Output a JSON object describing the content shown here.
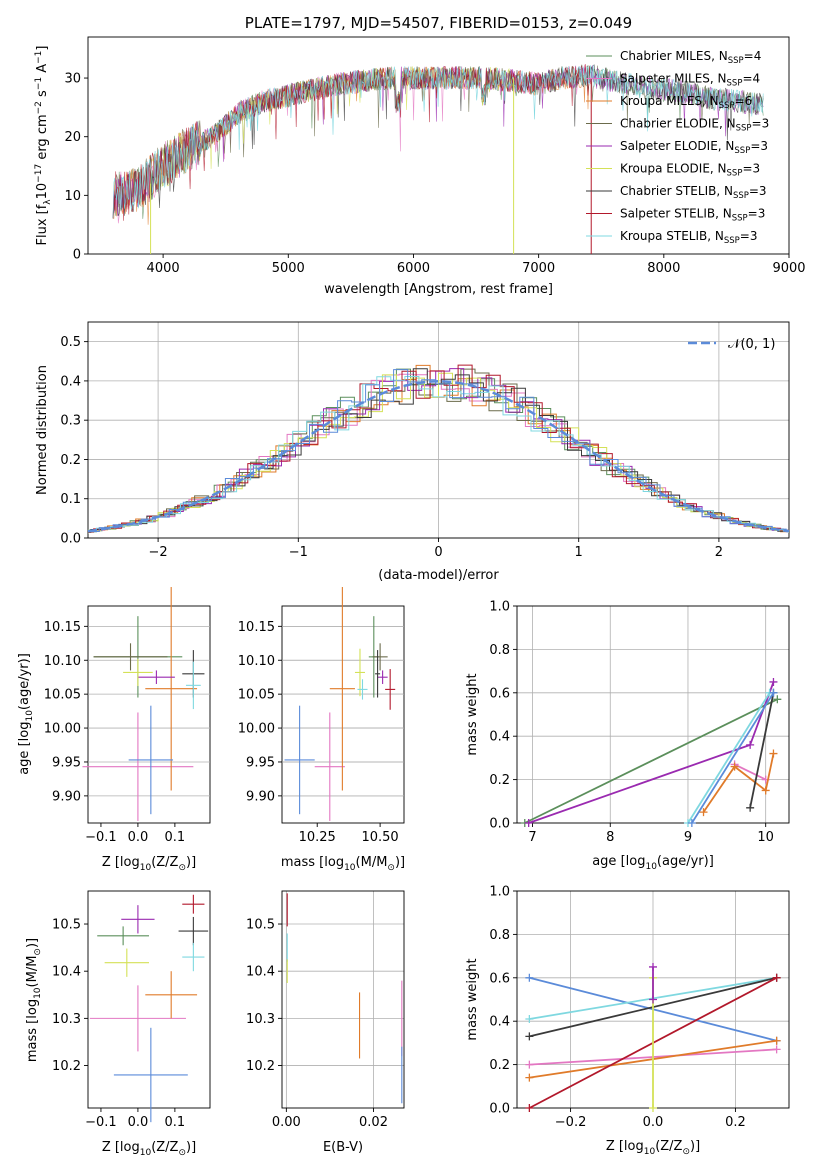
{
  "colors": {
    "chabrier_miles": "#5b8f5b",
    "salpeter_miles": "#e377c2",
    "kroupa_miles": "#e07b2a",
    "chabrier_elodie": "#6b6b4b",
    "salpeter_elodie": "#9a2ab0",
    "kroupa_elodie": "#d4e157",
    "chabrier_stelib": "#3a3a3a",
    "salpeter_stelib": "#b2182b",
    "kroupa_stelib": "#7fd8e0",
    "extra_blue": "#5b8bd9"
  },
  "chart_data": [
    {
      "id": "spectrum",
      "type": "line",
      "title": "PLATE=1797, MJD=54507, FIBERID=0153, z=0.049",
      "xlabel": "wavelength [Angstrom, rest frame]",
      "ylabel": "Flux [f_λ 10^-17 erg cm^-2 s^-1 A^-1]",
      "xlim": [
        3400,
        9000
      ],
      "ylim": [
        0,
        37
      ],
      "xticks": [
        "4000",
        "5000",
        "6000",
        "7000",
        "8000",
        "9000"
      ],
      "yticks": [
        "0",
        "10",
        "20",
        "30"
      ],
      "legend_position": "right",
      "legend": [
        {
          "main": "Chabrier MILES, N",
          "sub": "SSP",
          "tail": "=4"
        },
        {
          "main": "Salpeter MILES, N",
          "sub": "SSP",
          "tail": "=4"
        },
        {
          "main": "Kroupa MILES, N",
          "sub": "SSP",
          "tail": "=6"
        },
        {
          "main": "Chabrier ELODIE, N",
          "sub": "SSP",
          "tail": "=3"
        },
        {
          "main": "Salpeter ELODIE, N",
          "sub": "SSP",
          "tail": "=3"
        },
        {
          "main": "Kroupa ELODIE, N",
          "sub": "SSP",
          "tail": "=3"
        },
        {
          "main": "Chabrier STELIB, N",
          "sub": "SSP",
          "tail": "=3"
        },
        {
          "main": "Salpeter STELIB, N",
          "sub": "SSP",
          "tail": "=3"
        },
        {
          "main": "Kroupa STELIB, N",
          "sub": "SSP",
          "tail": "=3"
        }
      ],
      "continuum": [
        [
          3600,
          10
        ],
        [
          3800,
          11
        ],
        [
          4000,
          15
        ],
        [
          4200,
          18
        ],
        [
          4400,
          20
        ],
        [
          4600,
          24
        ],
        [
          4800,
          26
        ],
        [
          5000,
          27
        ],
        [
          5200,
          28
        ],
        [
          5400,
          29
        ],
        [
          5600,
          29.5
        ],
        [
          5800,
          30
        ],
        [
          6000,
          30
        ],
        [
          6200,
          30
        ],
        [
          6400,
          30
        ],
        [
          6600,
          30
        ],
        [
          6800,
          29.5
        ],
        [
          7000,
          29
        ],
        [
          7200,
          30
        ],
        [
          7400,
          30.5
        ],
        [
          7600,
          29.5
        ],
        [
          7800,
          28.5
        ],
        [
          8000,
          28
        ],
        [
          8200,
          27.5
        ],
        [
          8400,
          26.5
        ],
        [
          8600,
          26
        ],
        [
          8800,
          25.5
        ]
      ]
    },
    {
      "id": "residuals",
      "type": "histogram",
      "xlabel": "(data-model)/error",
      "ylabel": "Normed distribution",
      "xlim": [
        -2.5,
        2.5
      ],
      "ylim": [
        0,
        0.55
      ],
      "xticks": [
        "−2",
        "−1",
        "0",
        "1",
        "2"
      ],
      "yticks": [
        "0.0",
        "0.1",
        "0.2",
        "0.3",
        "0.4",
        "0.5"
      ],
      "grid": true,
      "legend_position": "top-right",
      "reference_label": "𝒩(0, 1)",
      "bin_width": 0.1
    },
    {
      "id": "age_vs_Z",
      "type": "scatter",
      "xlabel": "Z [log10(Z/Z⊙)]",
      "ylabel": "age [log10(age/yr)]",
      "xlim": [
        -0.135,
        0.195
      ],
      "ylim": [
        9.86,
        10.18
      ],
      "xticks": [
        "−0.1",
        "0.0",
        "0.1"
      ],
      "yticks": [
        "9.90",
        "9.95",
        "10.00",
        "10.05",
        "10.10",
        "10.15"
      ],
      "points": [
        {
          "c": "chabrier_miles",
          "x": 0.0,
          "y": 10.105,
          "ex": 0.12,
          "ey": 0.06
        },
        {
          "c": "salpeter_miles",
          "x": 0.0,
          "y": 9.943,
          "ex": 0.15,
          "ey": 0.08
        },
        {
          "c": "kroupa_miles",
          "x": 0.09,
          "y": 10.058,
          "ex": 0.07,
          "ey": 0.15
        },
        {
          "c": "chabrier_elodie",
          "x": -0.02,
          "y": 10.105,
          "ex": 0.1,
          "ey": 0.02
        },
        {
          "c": "salpeter_elodie",
          "x": 0.05,
          "y": 10.075,
          "ex": 0.05,
          "ey": 0.01
        },
        {
          "c": "kroupa_elodie",
          "x": 0.0,
          "y": 10.082,
          "ex": 0.04,
          "ey": 0.02
        },
        {
          "c": "chabrier_stelib",
          "x": 0.15,
          "y": 10.08,
          "ex": 0.03,
          "ey": 0.035
        },
        {
          "c": "kroupa_stelib",
          "x": 0.15,
          "y": 10.063,
          "ex": 0.02,
          "ey": 0.035
        },
        {
          "c": "extra_blue",
          "x": 0.035,
          "y": 9.953,
          "ex": 0.06,
          "ey": 0.08
        }
      ]
    },
    {
      "id": "age_vs_mass",
      "type": "scatter",
      "xlabel": "mass [log10(M/M⊙)]",
      "ylabel": "",
      "xlim": [
        10.11,
        10.595
      ],
      "ylim": [
        9.86,
        10.18
      ],
      "xticks": [
        "10.25",
        "10.50"
      ],
      "yticks": [
        "9.90",
        "9.95",
        "10.00",
        "10.05",
        "10.10",
        "10.15"
      ],
      "points": [
        {
          "c": "chabrier_miles",
          "x": 10.475,
          "y": 10.105,
          "ex": 0.02,
          "ey": 0.06
        },
        {
          "c": "salpeter_miles",
          "x": 10.3,
          "y": 9.943,
          "ex": 0.06,
          "ey": 0.08
        },
        {
          "c": "kroupa_miles",
          "x": 10.35,
          "y": 10.058,
          "ex": 0.05,
          "ey": 0.15
        },
        {
          "c": "chabrier_elodie",
          "x": 10.5,
          "y": 10.105,
          "ex": 0.03,
          "ey": 0.02
        },
        {
          "c": "salpeter_elodie",
          "x": 10.51,
          "y": 10.075,
          "ex": 0.02,
          "ey": 0.01
        },
        {
          "c": "kroupa_elodie",
          "x": 10.42,
          "y": 10.082,
          "ex": 0.02,
          "ey": 0.035
        },
        {
          "c": "chabrier_stelib",
          "x": 10.49,
          "y": 10.08,
          "ex": 0.01,
          "ey": 0.035
        },
        {
          "c": "salpeter_stelib",
          "x": 10.54,
          "y": 10.057,
          "ex": 0.02,
          "ey": 0.03
        },
        {
          "c": "kroupa_stelib",
          "x": 10.43,
          "y": 10.057,
          "ex": 0.02,
          "ey": 0.015
        },
        {
          "c": "extra_blue",
          "x": 10.18,
          "y": 9.953,
          "ex": 0.06,
          "ey": 0.08
        }
      ]
    },
    {
      "id": "weight_vs_age",
      "type": "line",
      "xlabel": "age [log10(age/yr)]",
      "ylabel": "mass weight",
      "xlim": [
        6.8,
        10.3
      ],
      "ylim": [
        0,
        1
      ],
      "xticks": [
        "7",
        "8",
        "9",
        "10"
      ],
      "yticks": [
        "0.0",
        "0.2",
        "0.4",
        "0.6",
        "0.8",
        "1.0"
      ],
      "grid": true,
      "series": [
        {
          "c": "chabrier_miles",
          "x": [
            6.9,
            10.15
          ],
          "y": [
            0.0,
            0.57
          ]
        },
        {
          "c": "salpeter_miles",
          "x": [
            9.6,
            10.0
          ],
          "y": [
            0.27,
            0.2
          ]
        },
        {
          "c": "kroupa_miles",
          "x": [
            9.2,
            9.6,
            10.0,
            10.1
          ],
          "y": [
            0.05,
            0.26,
            0.15,
            0.32
          ]
        },
        {
          "c": "salpeter_elodie",
          "x": [
            6.95,
            9.8,
            10.1
          ],
          "y": [
            0.0,
            0.36,
            0.65
          ]
        },
        {
          "c": "chabrier_stelib",
          "x": [
            9.8,
            10.1
          ],
          "y": [
            0.07,
            0.6
          ]
        },
        {
          "c": "kroupa_stelib",
          "x": [
            9.0,
            10.05
          ],
          "y": [
            0.0,
            0.6
          ]
        },
        {
          "c": "extra_blue",
          "x": [
            9.05,
            10.1
          ],
          "y": [
            0.0,
            0.6
          ]
        }
      ]
    },
    {
      "id": "mass_vs_Z",
      "type": "scatter",
      "xlabel": "Z [log10(Z/Z⊙)]",
      "ylabel": "mass [log10(M/M⊙)]",
      "xlim": [
        -0.135,
        0.195
      ],
      "ylim": [
        10.11,
        10.57
      ],
      "xticks": [
        "−0.1",
        "0.0",
        "0.1"
      ],
      "yticks": [
        "10.2",
        "10.3",
        "10.4",
        "10.5"
      ],
      "points": [
        {
          "c": "chabrier_miles",
          "x": -0.04,
          "y": 10.475,
          "ex": 0.07,
          "ey": 0.02
        },
        {
          "c": "salpeter_miles",
          "x": 0.0,
          "y": 10.3,
          "ex": 0.13,
          "ey": 0.07
        },
        {
          "c": "kroupa_miles",
          "x": 0.09,
          "y": 10.35,
          "ex": 0.07,
          "ey": 0.05
        },
        {
          "c": "salpeter_elodie",
          "x": 0.0,
          "y": 10.51,
          "ex": 0.045,
          "ey": 0.03
        },
        {
          "c": "kroupa_elodie",
          "x": -0.03,
          "y": 10.418,
          "ex": 0.06,
          "ey": 0.03
        },
        {
          "c": "chabrier_stelib",
          "x": 0.15,
          "y": 10.485,
          "ex": 0.04,
          "ey": 0.03
        },
        {
          "c": "salpeter_stelib",
          "x": 0.15,
          "y": 10.542,
          "ex": 0.03,
          "ey": 0.02
        },
        {
          "c": "kroupa_stelib",
          "x": 0.15,
          "y": 10.43,
          "ex": 0.03,
          "ey": 0.03
        },
        {
          "c": "extra_blue",
          "x": 0.035,
          "y": 10.18,
          "ex": 0.1,
          "ey": 0.1
        }
      ]
    },
    {
      "id": "mass_vs_ebv",
      "type": "scatter",
      "xlabel": "E(B-V)",
      "ylabel": "",
      "xlim": [
        -0.001,
        0.027
      ],
      "ylim": [
        10.11,
        10.57
      ],
      "xticks": [
        "0.00",
        "0.02"
      ],
      "yticks": [
        "10.2",
        "10.3",
        "10.4",
        "10.5"
      ],
      "grid": true,
      "points": [
        {
          "c": "kroupa_miles",
          "x": 0.0168,
          "y": 10.285,
          "ex": 0,
          "ey": 0.07
        },
        {
          "c": "salpeter_miles",
          "x": 0.0265,
          "y": 10.3,
          "ex": 0,
          "ey": 0.08
        },
        {
          "c": "extra_blue",
          "x": 0.0265,
          "y": 10.18,
          "ex": 0,
          "ey": 0.06
        },
        {
          "c": "salpeter_stelib",
          "x": 0.0002,
          "y": 10.53,
          "ex": 0,
          "ey": 0.035
        },
        {
          "c": "kroupa_stelib",
          "x": 0.0002,
          "y": 10.45,
          "ex": 0,
          "ey": 0.03
        },
        {
          "c": "kroupa_elodie",
          "x": 0.0002,
          "y": 10.4,
          "ex": 0,
          "ey": 0.025
        }
      ]
    },
    {
      "id": "weight_vs_Z",
      "type": "line",
      "xlabel": "Z [log10(Z/Z⊙)]",
      "ylabel": "mass weight",
      "xlim": [
        -0.33,
        0.33
      ],
      "ylim": [
        0,
        1
      ],
      "xticks": [
        "−0.2",
        "0.0",
        "0.2"
      ],
      "yticks": [
        "0.0",
        "0.2",
        "0.4",
        "0.6",
        "0.8",
        "1.0"
      ],
      "grid": true,
      "series": [
        {
          "c": "extra_blue",
          "x": [
            -0.3,
            0.3
          ],
          "y": [
            0.6,
            0.31
          ]
        },
        {
          "c": "kroupa_stelib",
          "x": [
            -0.3,
            0.3
          ],
          "y": [
            0.41,
            0.6
          ]
        },
        {
          "c": "chabrier_stelib",
          "x": [
            -0.3,
            0.3
          ],
          "y": [
            0.33,
            0.6
          ]
        },
        {
          "c": "salpeter_miles",
          "x": [
            -0.3,
            0.3
          ],
          "y": [
            0.2,
            0.27
          ]
        },
        {
          "c": "kroupa_miles",
          "x": [
            -0.3,
            0.3
          ],
          "y": [
            0.14,
            0.31
          ]
        },
        {
          "c": "salpeter_stelib",
          "x": [
            -0.3,
            0.3
          ],
          "y": [
            0.0,
            0.6
          ]
        },
        {
          "c": "kroupa_elodie",
          "x": [
            0.0,
            0.0
          ],
          "y": [
            0.0,
            0.6
          ]
        },
        {
          "c": "salpeter_elodie",
          "x": [
            0.0,
            0.0
          ],
          "y": [
            0.5,
            0.65
          ]
        }
      ]
    }
  ]
}
